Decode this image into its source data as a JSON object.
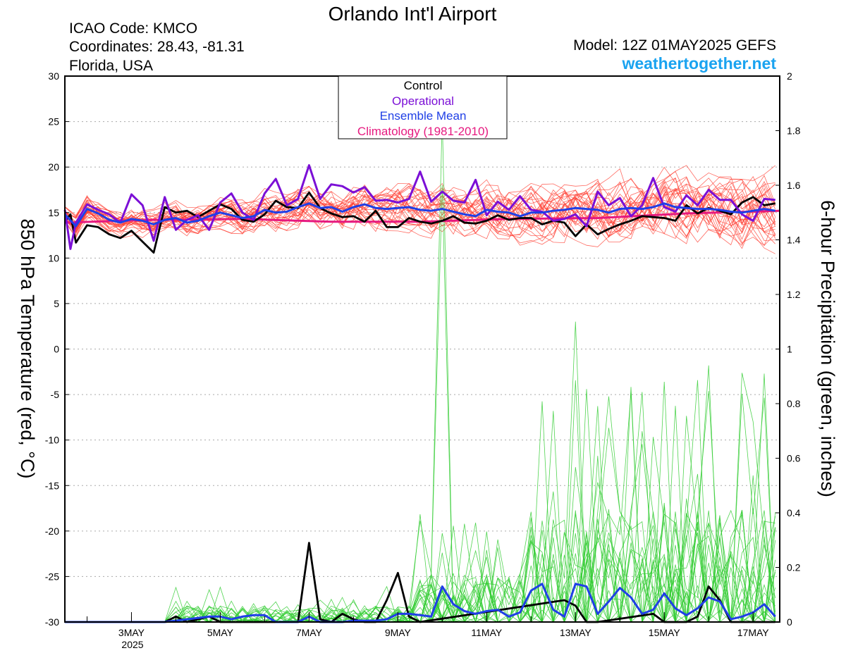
{
  "header": {
    "title": "Orlando Int'l Airport",
    "icao": "ICAO Code: KMCO",
    "coords": "Coordinates: 28.43, -81.31",
    "region": "Florida, USA",
    "model": "Model: 12Z 01MAY2025 GEFS",
    "site": "weathertogether.net"
  },
  "legend": {
    "control": "Control",
    "operational": "Operational",
    "ensemble_mean": "Ensemble Mean",
    "climatology": "Climatology (1981-2010)"
  },
  "axes": {
    "left_label": "850 hPa Temperature (red, °C)",
    "right_label": "6-hour Precipitation (green, inches)",
    "year_label": "2025"
  },
  "colors": {
    "member_temp": "#ff3b2f",
    "member_precip": "#33cc33",
    "control": "#000000",
    "operational": "#7b0fd6",
    "mean": "#1f3fe6",
    "climatology": "#e6197f",
    "site": "#1aa3f0"
  },
  "chart_data": {
    "type": "line",
    "x_unit": "days from 00Z 1 May 2025",
    "xlim": [
      1.5,
      17.6
    ],
    "x_ticks": [
      {
        "day": 3,
        "label": "3MAY"
      },
      {
        "day": 5,
        "label": "5MAY"
      },
      {
        "day": 7,
        "label": "7MAY"
      },
      {
        "day": 9,
        "label": "9MAY"
      },
      {
        "day": 11,
        "label": "11MAY"
      },
      {
        "day": 13,
        "label": "13MAY"
      },
      {
        "day": 15,
        "label": "15MAY"
      },
      {
        "day": 17,
        "label": "17MAY"
      }
    ],
    "y_left": {
      "ylim": [
        -30,
        30
      ],
      "ticks": [
        30,
        25,
        20,
        15,
        10,
        5,
        0,
        -5,
        -10,
        -15,
        -20,
        -25,
        -30
      ]
    },
    "y_right": {
      "ylim": [
        0,
        2
      ],
      "ticks": [
        "2",
        "1.8",
        "1.6",
        "1.4",
        "1.2",
        "1",
        "0.8",
        "0.6",
        "0.4",
        "0.2",
        "0"
      ]
    },
    "grid": true,
    "series": [
      {
        "name": "Control",
        "axis": "left",
        "x": [
          1.5,
          1.625,
          1.75,
          2.0,
          2.25,
          2.5,
          2.75,
          3.0,
          3.25,
          3.5,
          3.75,
          4.0,
          4.25,
          4.5,
          4.75,
          5.0,
          5.25,
          5.5,
          5.75,
          6.0,
          6.25,
          6.5,
          6.75,
          7.0,
          7.25,
          7.5,
          7.75,
          8.0,
          8.25,
          8.5,
          8.75,
          9.0,
          9.25,
          9.5,
          9.75,
          10.0,
          10.25,
          10.5,
          10.75,
          11.0,
          11.25,
          11.5,
          11.75,
          12.0,
          12.25,
          12.5,
          12.75,
          13.0,
          13.25,
          13.5,
          13.75,
          14.0,
          14.25,
          14.5,
          14.75,
          15.0,
          15.25,
          15.5,
          15.75,
          16.0,
          16.25,
          16.5,
          16.75,
          17.0,
          17.25,
          17.5
        ],
        "values": [
          14.0,
          14.8,
          11.7,
          13.6,
          13.4,
          12.6,
          12.2,
          13.0,
          11.8,
          10.6,
          15.6,
          15.0,
          15.2,
          14.5,
          15.2,
          15.9,
          15.4,
          14.2,
          14.0,
          14.8,
          16.3,
          15.6,
          15.5,
          17.2,
          15.5,
          14.9,
          14.5,
          14.6,
          14.0,
          15.2,
          13.4,
          13.4,
          14.4,
          14.0,
          13.8,
          14.1,
          14.6,
          13.9,
          13.8,
          14.1,
          14.7,
          14.2,
          14.4,
          14.4,
          13.7,
          14.1,
          13.9,
          12.4,
          13.7,
          12.6,
          13.2,
          13.7,
          14.1,
          14.6,
          14.5,
          14.4,
          14.1,
          15.8,
          14.9,
          15.5,
          15.2,
          14.8,
          16.1,
          16.7,
          15.8,
          16.0
        ]
      },
      {
        "name": "Operational",
        "axis": "left",
        "x": [
          1.5,
          1.625,
          1.75,
          2.0,
          2.25,
          2.5,
          2.75,
          3.0,
          3.25,
          3.5,
          3.75,
          4.0,
          4.25,
          4.5,
          4.75,
          5.0,
          5.25,
          5.5,
          5.75,
          6.0,
          6.25,
          6.5,
          6.75,
          7.0,
          7.25,
          7.5,
          7.75,
          8.0,
          8.25,
          8.5,
          8.75,
          9.0,
          9.25,
          9.5,
          9.75,
          10.0,
          10.25,
          10.5,
          10.75,
          11.0,
          11.25,
          11.5,
          11.75,
          12.0,
          12.25,
          12.5,
          12.75,
          13.0,
          13.25,
          13.5,
          13.75,
          14.0,
          14.25,
          14.5,
          14.75,
          15.0,
          15.25,
          15.5,
          15.75,
          16.0,
          16.25,
          16.5,
          16.75,
          17.0,
          17.25,
          17.5
        ],
        "values": [
          15.3,
          11.0,
          13.9,
          15.9,
          15.3,
          14.8,
          13.9,
          17.0,
          15.8,
          11.9,
          16.7,
          13.1,
          14.2,
          14.7,
          13.1,
          16.1,
          17.1,
          15.0,
          14.2,
          17.1,
          18.7,
          15.8,
          16.5,
          20.2,
          16.5,
          18.1,
          17.9,
          17.2,
          17.8,
          16.3,
          16.4,
          16.1,
          16.5,
          19.5,
          16.2,
          17.3,
          16.3,
          16.1,
          18.6,
          14.7,
          16.2,
          15.3,
          16.8,
          15.3,
          15.1,
          14.1,
          14.3,
          14.8,
          13.5,
          17.3,
          15.8,
          16.6,
          14.6,
          15.8,
          18.8,
          15.6,
          15.1,
          16.9,
          15.8,
          17.5,
          16.4,
          16.4,
          14.8,
          14.1,
          16.5,
          16.4
        ]
      },
      {
        "name": "Ensemble Mean",
        "axis": "left",
        "x": [
          1.5,
          1.75,
          2.0,
          2.25,
          2.5,
          2.75,
          3.0,
          3.25,
          3.5,
          3.75,
          4.0,
          4.25,
          4.5,
          4.75,
          5.0,
          5.25,
          5.5,
          5.75,
          6.0,
          6.25,
          6.5,
          6.75,
          7.0,
          7.25,
          7.5,
          7.75,
          8.0,
          8.25,
          8.5,
          8.75,
          9.0,
          9.25,
          9.5,
          9.75,
          10.0,
          10.25,
          10.5,
          10.75,
          11.0,
          11.25,
          11.5,
          11.75,
          12.0,
          12.25,
          12.5,
          12.75,
          13.0,
          13.25,
          13.5,
          13.75,
          14.0,
          14.25,
          14.5,
          14.75,
          15.0,
          15.25,
          15.5,
          15.75,
          16.0,
          16.25,
          16.5,
          16.75,
          17.0,
          17.25,
          17.5
        ],
        "values": [
          14.8,
          13.5,
          15.4,
          14.9,
          14.2,
          13.9,
          14.3,
          14.1,
          13.7,
          14.2,
          14.4,
          13.9,
          14.1,
          14.6,
          15.0,
          14.7,
          14.4,
          14.6,
          15.3,
          15.0,
          15.1,
          15.6,
          16.0,
          15.5,
          15.6,
          15.1,
          15.6,
          15.9,
          15.5,
          15.4,
          15.5,
          15.6,
          15.3,
          15.2,
          15.4,
          15.1,
          14.8,
          14.6,
          15.3,
          15.1,
          15.0,
          14.6,
          15.0,
          15.0,
          15.2,
          15.3,
          15.5,
          15.4,
          15.3,
          15.0,
          15.4,
          15.5,
          15.4,
          15.6,
          16.0,
          15.6,
          15.5,
          15.4,
          15.4,
          15.3,
          15.1,
          15.0,
          15.2,
          15.4,
          15.2
        ]
      },
      {
        "name": "Climatology (1981-2010)",
        "axis": "left",
        "x": [
          1.5,
          3.5,
          5.5,
          7.5,
          9.5,
          11.5,
          13.5,
          15.5,
          17.6
        ],
        "values": [
          13.9,
          14.2,
          14.3,
          14.0,
          14.0,
          14.3,
          14.4,
          14.9,
          15.2
        ]
      },
      {
        "name": "Control",
        "axis": "right",
        "x": [
          1.5,
          3.75,
          4.0,
          4.25,
          4.5,
          4.75,
          5.0,
          5.25,
          5.5,
          5.75,
          6.0,
          6.25,
          6.5,
          6.75,
          7.0,
          7.25,
          7.5,
          7.75,
          8.0,
          8.25,
          8.5,
          8.75,
          9.0,
          9.25,
          9.5,
          12.75,
          13.0,
          13.25,
          13.5,
          14.75,
          15.0,
          15.25,
          15.5,
          15.75,
          16.0,
          16.25,
          16.5,
          16.75,
          17.0,
          17.25,
          17.5
        ],
        "values": [
          0,
          0,
          0.02,
          0.0,
          0.01,
          0.02,
          0.0,
          0.0,
          0.0,
          0.0,
          0.0,
          0.0,
          0.0,
          0.0,
          0.29,
          0.01,
          0.0,
          0.03,
          0.01,
          0.0,
          0.0,
          0.08,
          0.18,
          0.02,
          0.0,
          0.08,
          0.06,
          0.0,
          0.0,
          0.03,
          0.0,
          0.0,
          0.0,
          0.02,
          0.13,
          0.08,
          0.0,
          0.0,
          0.0,
          0.0,
          0.0
        ]
      },
      {
        "name": "Ensemble Mean",
        "axis": "right",
        "x": [
          1.5,
          3.75,
          4.0,
          4.25,
          4.5,
          4.75,
          5.0,
          5.25,
          5.5,
          5.75,
          6.0,
          6.25,
          6.5,
          6.75,
          7.0,
          7.25,
          7.5,
          7.75,
          8.0,
          8.25,
          8.5,
          8.75,
          9.0,
          9.25,
          9.5,
          9.75,
          10.0,
          10.25,
          10.5,
          10.75,
          11.0,
          11.25,
          11.5,
          11.75,
          12.0,
          12.25,
          12.5,
          12.75,
          13.0,
          13.25,
          13.5,
          13.75,
          14.0,
          14.25,
          14.5,
          14.75,
          15.0,
          15.25,
          15.5,
          15.75,
          16.0,
          16.25,
          16.5,
          16.75,
          17.0,
          17.25,
          17.5
        ],
        "values": [
          0,
          0,
          0.005,
          0.01,
          0.015,
          0.02,
          0.02,
          0.01,
          0.02,
          0.025,
          0.025,
          0.0,
          0.0,
          0.0,
          0.02,
          0.0,
          0.0,
          0.0,
          0.005,
          0.005,
          0.005,
          0.01,
          0.03,
          0.03,
          0.025,
          0.02,
          0.13,
          0.065,
          0.04,
          0.03,
          0.04,
          0.045,
          0.02,
          0.035,
          0.115,
          0.14,
          0.045,
          0.02,
          0.14,
          0.13,
          0.03,
          0.075,
          0.125,
          0.09,
          0.03,
          0.045,
          0.105,
          0.05,
          0.025,
          0.05,
          0.09,
          0.075,
          0.01,
          0.02,
          0.035,
          0.065,
          0.02
        ]
      }
    ]
  }
}
